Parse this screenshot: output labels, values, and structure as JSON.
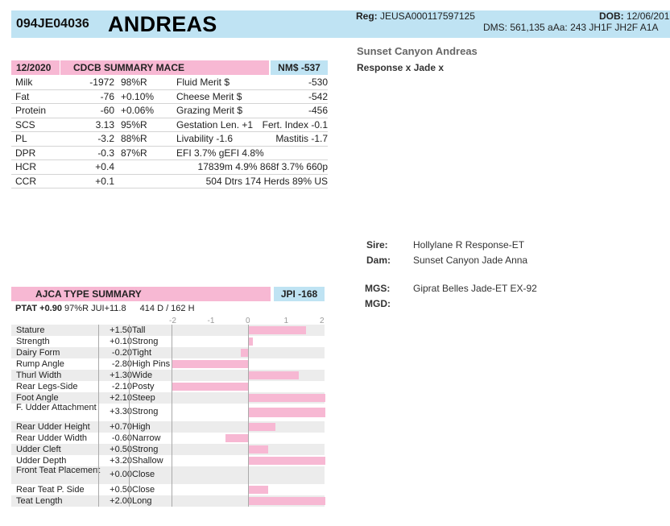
{
  "header": {
    "reg_id": "094JE04036",
    "name": "ANDREAS",
    "reg_label": "Reg:",
    "reg_value": "JEUSA000117597125",
    "dob_label": "DOB:",
    "dob_value": "12/06/201",
    "dms_line": "DMS: 561,135  aAa: 243  JH1F  JH2F  A1A"
  },
  "full_name": "Sunset Canyon Andreas",
  "parentage": "Response x Jade x",
  "summary": {
    "date": "12/2020",
    "title": "CDCB SUMMARY MACE",
    "nm_label": "NM$ -537",
    "rows": [
      {
        "trait": "Milk",
        "value": "-1972",
        "rel": "98%R",
        "merit": "Fluid Merit $",
        "merit_value": "-530"
      },
      {
        "trait": "Fat",
        "value": "-76",
        "rel": "+0.10%",
        "merit": "Cheese Merit $",
        "merit_value": "-542"
      },
      {
        "trait": "Protein",
        "value": "-60",
        "rel": "+0.06%",
        "merit": "Grazing Merit $",
        "merit_value": "-456"
      },
      {
        "trait": "SCS",
        "value": "3.13",
        "rel": "95%R",
        "merit": "Gestation Len. +1",
        "merit_value": "Fert. Index -0.1"
      },
      {
        "trait": "PL",
        "value": "-3.2",
        "rel": "88%R",
        "merit": "Livability  -1.6",
        "merit_value": "Mastitis  -1.7"
      },
      {
        "trait": "DPR",
        "value": "-0.3",
        "rel": "87%R",
        "merit": " EFI  3.7%  gEFI  4.8%",
        "merit_value": ""
      },
      {
        "trait": "HCR",
        "value": "+0.4",
        "rel": "",
        "merit": "",
        "merit_value": "17839m  4.9%  868f  3.7%  660p"
      },
      {
        "trait": "CCR",
        "value": "+0.1",
        "rel": "",
        "merit": "",
        "merit_value": "504 Dtrs  174 Herds  89% US"
      }
    ]
  },
  "pedigree": {
    "sire_label": "Sire:",
    "sire": "Hollylane R Response-ET",
    "dam_label": "Dam:",
    "dam": "Sunset Canyon Jade Anna",
    "mgs_label": "MGS:",
    "mgs": "Giprat Belles Jade-ET EX-92",
    "mgd_label": "MGD:",
    "mgd": ""
  },
  "type_summary": {
    "title": "AJCA TYPE SUMMARY",
    "jpi": "JPI -168",
    "ptat": "PTAT +0.90",
    "ptat_rest": "97%R  JUI+11.8",
    "daughters": "414 D /  162 H",
    "scale": [
      "-2",
      "-1",
      "0",
      "1",
      "2"
    ],
    "traits": [
      {
        "name": "Stature",
        "value": "+1.50",
        "desc": "Tall",
        "num": 1.5
      },
      {
        "name": "Strength",
        "value": "+0.10",
        "desc": "Strong",
        "num": 0.1
      },
      {
        "name": "Dairy Form",
        "value": "-0.20",
        "desc": "Tight",
        "num": -0.2
      },
      {
        "name": "Rump Angle",
        "value": "-2.80",
        "desc": "High Pins",
        "num": -2.8
      },
      {
        "name": "Thurl Width",
        "value": "+1.30",
        "desc": "Wide",
        "num": 1.3
      },
      {
        "name": "Rear Legs-Side",
        "value": "-2.10",
        "desc": "Posty",
        "num": -2.1
      },
      {
        "name": "Foot Angle",
        "value": "+2.10",
        "desc": "Steep",
        "num": 2.1
      },
      {
        "name": "F. Udder Attachment",
        "value": "+3.30",
        "desc": "Strong",
        "num": 3.3,
        "tall": true
      },
      {
        "name": "Rear Udder Height",
        "value": "+0.70",
        "desc": "High",
        "num": 0.7
      },
      {
        "name": "Rear Udder Width",
        "value": "-0.60",
        "desc": "Narrow",
        "num": -0.6
      },
      {
        "name": "Udder Cleft",
        "value": "+0.50",
        "desc": "Strong",
        "num": 0.5
      },
      {
        "name": "Udder Depth",
        "value": "+3.20",
        "desc": "Shallow",
        "num": 3.2
      },
      {
        "name": "Front Teat Placement",
        "value": "+0.00",
        "desc": "Close",
        "num": 0,
        "tall": true
      },
      {
        "name": "Rear Teat P. Side",
        "value": "+0.50",
        "desc": "Close",
        "num": 0.5
      },
      {
        "name": "Teat Length",
        "value": "+2.00",
        "desc": "Long",
        "num": 2.0
      }
    ]
  },
  "colors": {
    "pink": "#f7b8d3",
    "blue": "#bfe3f3"
  }
}
